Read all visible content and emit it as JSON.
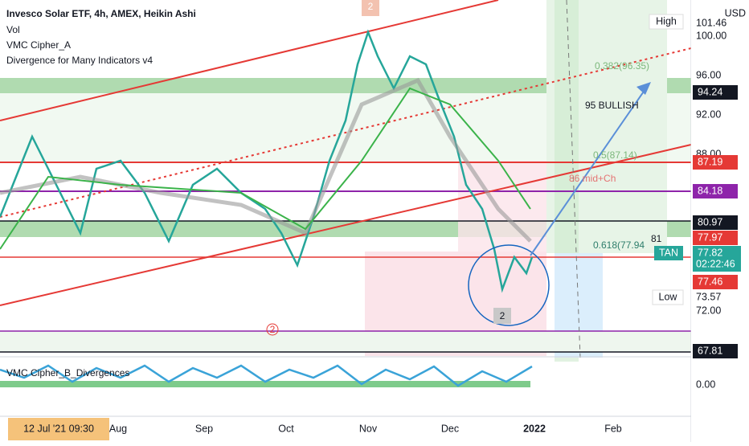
{
  "header": {
    "title": "Invesco Solar ETF, 4h, AMEX, Heikin Ashi",
    "indicators": [
      "Vol",
      "VMC Cipher_A",
      "Divergence for Many Indicators v4"
    ]
  },
  "price_axis": {
    "currency": "USD",
    "high_label": "High",
    "high_value": "101.46",
    "ticks": [
      "100.00",
      "96.00",
      "92.00",
      "88.00",
      "72.00"
    ],
    "levels": [
      "94.24",
      "87.19",
      "84.18",
      "80.97",
      "77.97",
      "77.46",
      "67.81"
    ],
    "symbol": "TAN",
    "last_price": "77.82",
    "countdown": "02:22:46",
    "low_label": "Low",
    "low_value": "73.57",
    "indicator_tick": "0.00"
  },
  "annotations": {
    "bullish": "95 BULLISH",
    "mid": "86 mid+Ch",
    "level81": "81",
    "fib382": "0.382(96.35)",
    "fib5": "0.5(87.14)",
    "fib618": "0.618(77.94",
    "marker_top": "2",
    "marker_bottom": "2",
    "marker_mid": "2"
  },
  "lower_pane": {
    "title": "VMC Cipher_B_Divergences"
  },
  "time_axis": {
    "crosshair_date": "12 Jul '21  09:30",
    "labels": [
      "Aug",
      "Sep",
      "Oct",
      "Nov",
      "Dec",
      "2022",
      "Feb"
    ]
  }
}
